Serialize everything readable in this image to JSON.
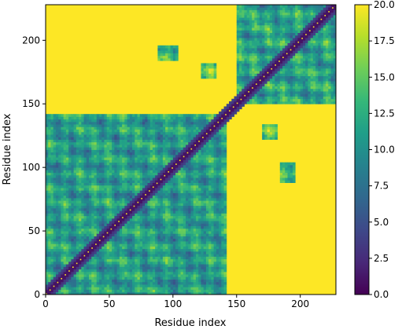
{
  "chart_data": {
    "type": "heatmap",
    "title": "",
    "xlabel": "Residue index",
    "ylabel": "Residue index",
    "n_residues": 228,
    "x_range": [
      0,
      228
    ],
    "y_range": [
      0,
      228
    ],
    "y_origin": "bottom",
    "x_ticks": [
      "0",
      "50",
      "100",
      "150",
      "200"
    ],
    "x_tick_values": [
      0,
      50,
      100,
      150,
      200
    ],
    "y_ticks": [
      "0",
      "50",
      "100",
      "150",
      "200"
    ],
    "y_tick_values": [
      0,
      50,
      100,
      150,
      200
    ],
    "colorbar": {
      "colormap": "viridis",
      "range": [
        0.0,
        20.0
      ],
      "ticks": [
        "0.0",
        "2.5",
        "5.0",
        "7.5",
        "10.0",
        "12.5",
        "15.0",
        "17.5",
        "20.0"
      ],
      "tick_values": [
        0.0,
        2.5,
        5.0,
        7.5,
        10.0,
        12.5,
        15.0,
        17.5,
        20.0
      ]
    },
    "saturation_value": 20.0,
    "diagonal_value": 0.0,
    "contact_regions": [
      {
        "x": [
          0,
          140
        ],
        "y": [
          0,
          140
        ],
        "level": 11.0
      },
      {
        "x": [
          150,
          228
        ],
        "y": [
          150,
          228
        ],
        "level": 11.5
      },
      {
        "x": [
          2,
          20
        ],
        "y": [
          96,
          108
        ],
        "level": 10.0
      },
      {
        "x": [
          10,
          22
        ],
        "y": [
          124,
          134
        ],
        "level": 13.0
      },
      {
        "x": [
          96,
          110
        ],
        "y": [
          0,
          14
        ],
        "level": 10.0
      },
      {
        "x": [
          120,
          130
        ],
        "y": [
          10,
          22
        ],
        "level": 12.0
      },
      {
        "x": [
          170,
          178
        ],
        "y": [
          182,
          192
        ],
        "level": 13.0
      },
      {
        "x": [
          184,
          196
        ],
        "y": [
          184,
          194
        ],
        "level": 14.0
      },
      {
        "x": [
          168,
          176
        ],
        "y": [
          162,
          178
        ],
        "level": 13.0
      },
      {
        "x": [
          184,
          194
        ],
        "y": [
          88,
          102
        ],
        "level": 14.0
      },
      {
        "x": [
          170,
          180
        ],
        "y": [
          122,
          132
        ],
        "level": 14.0
      }
    ]
  }
}
